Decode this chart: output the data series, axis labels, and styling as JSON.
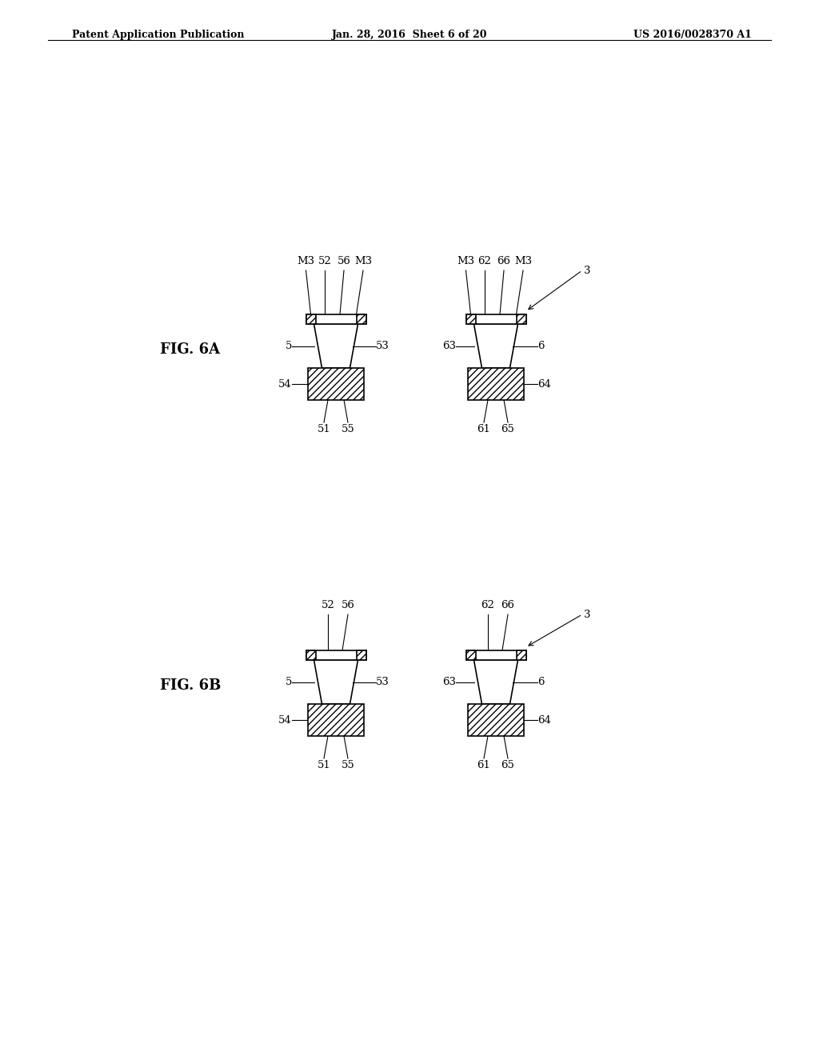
{
  "header_left": "Patent Application Publication",
  "header_middle": "Jan. 28, 2016  Sheet 6 of 20",
  "header_right": "US 2016/0028370 A1",
  "fig6a_label": "FIG. 6A",
  "fig6b_label": "FIG. 6B",
  "bg_color": "#ffffff",
  "line_color": "#000000",
  "hatch_color": "#000000"
}
